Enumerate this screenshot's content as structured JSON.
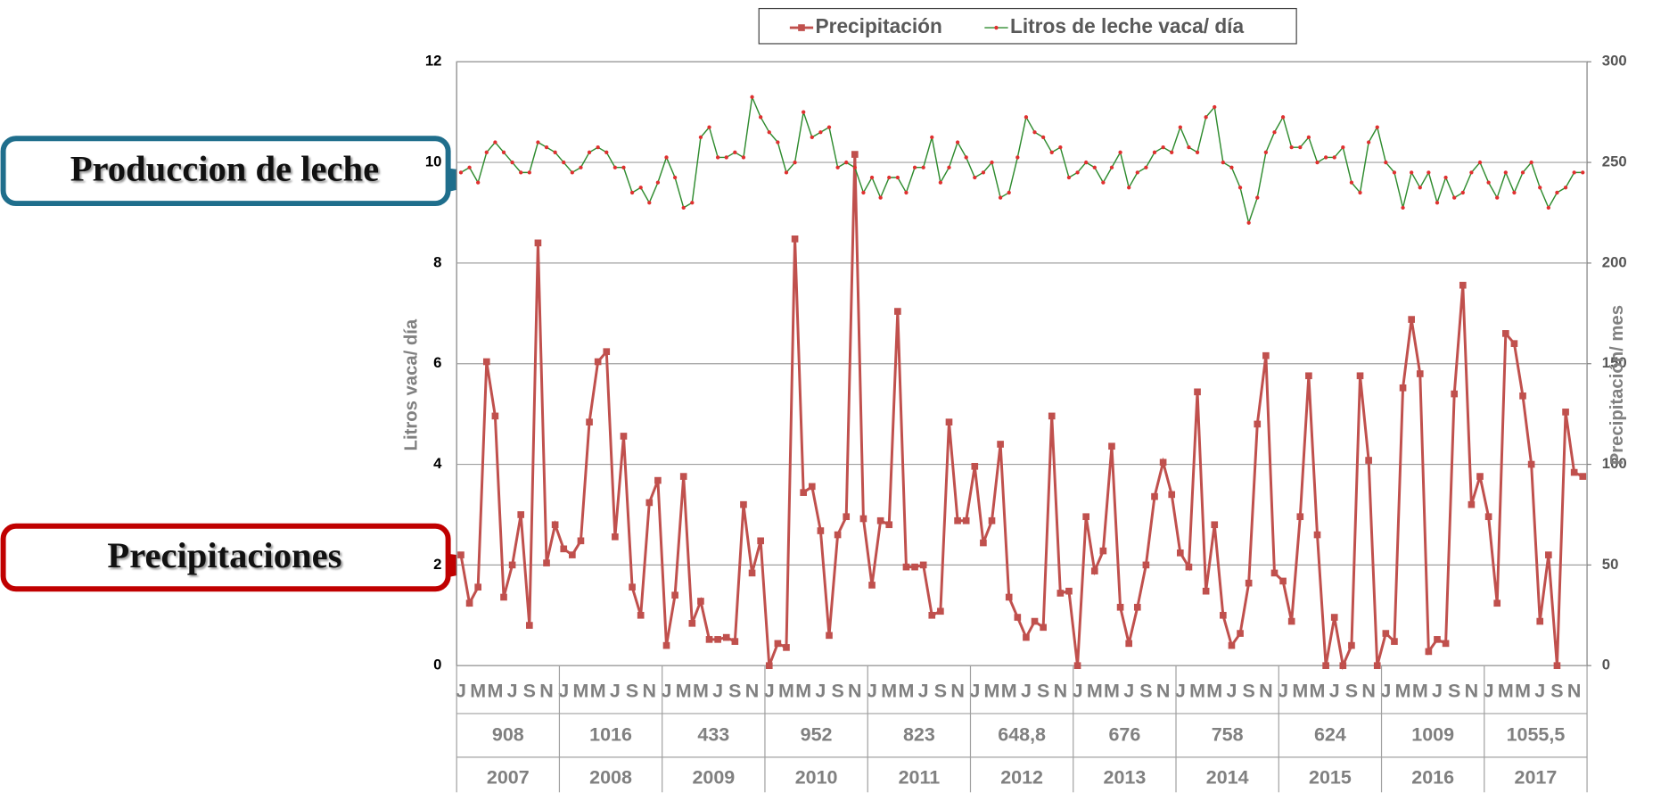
{
  "chart_data": {
    "type": "line",
    "categories": [
      "J",
      null,
      "M",
      null,
      "M",
      null,
      "J",
      null,
      "S",
      null,
      "N",
      null,
      "J",
      null,
      "M",
      null,
      "M",
      null,
      "J",
      null,
      "S",
      null,
      "N",
      null,
      "J",
      null,
      "M",
      null,
      "M",
      null,
      "J",
      null,
      "S",
      null,
      "N",
      null,
      "J",
      null,
      "M",
      null,
      "M",
      null,
      "J",
      null,
      "S",
      null,
      "N",
      null,
      "J",
      null,
      "M",
      null,
      "M",
      null,
      "J",
      null,
      "S",
      null,
      "N",
      null,
      "J",
      null,
      "M",
      null,
      "M",
      null,
      "J",
      null,
      "S",
      null,
      "N",
      null,
      "J",
      null,
      "M",
      null,
      "M",
      null,
      "J",
      null,
      "S",
      null,
      "N",
      null,
      "J",
      null,
      "M",
      null,
      "M",
      null,
      "J",
      null,
      "S",
      null,
      "N",
      null,
      "J",
      null,
      "M",
      null,
      "M",
      null,
      "J",
      null,
      "S",
      null,
      "N",
      null,
      "J",
      null,
      "M",
      null,
      "M",
      null,
      "J",
      null,
      "S",
      null,
      "N",
      null,
      "J",
      null,
      "M",
      null,
      "M",
      null,
      "J",
      null,
      "S",
      null,
      "N",
      null
    ],
    "x_groups": [
      {
        "total": "908",
        "year": "2007"
      },
      {
        "total": "1016",
        "year": "2008"
      },
      {
        "total": "433",
        "year": "2009"
      },
      {
        "total": "952",
        "year": "2010"
      },
      {
        "total": "823",
        "year": "2011"
      },
      {
        "total": "648,8",
        "year": "2012"
      },
      {
        "total": "676",
        "year": "2013"
      },
      {
        "total": "758",
        "year": "2014"
      },
      {
        "total": "624",
        "year": "2015"
      },
      {
        "total": "1009",
        "year": "2016"
      },
      {
        "total": "1055,5",
        "year": "2017"
      }
    ],
    "ylabel": "Litros vaca/ día",
    "y2label": "Precipitación/ mes",
    "ylim": [
      0,
      12
    ],
    "yticks": [
      0,
      2,
      4,
      6,
      8,
      10,
      12
    ],
    "y2lim": [
      0,
      300
    ],
    "y2ticks": [
      0,
      50,
      100,
      150,
      200,
      250,
      300
    ],
    "grid": true,
    "legend": "top",
    "series": [
      {
        "name": "Precipitación",
        "color": "#c0504d",
        "marker": "square",
        "axis": "y2",
        "values": [
          55,
          31,
          39,
          151,
          124,
          34,
          50,
          75,
          20,
          210,
          51,
          70,
          58,
          55,
          62,
          121,
          151,
          156,
          64,
          114,
          39,
          25,
          81,
          92,
          10,
          35,
          94,
          21,
          32,
          13,
          13,
          14,
          12,
          80,
          46,
          62,
          0,
          11,
          9,
          212,
          86,
          89,
          67,
          15,
          65,
          74,
          254,
          73,
          40,
          72,
          70,
          176,
          49,
          49,
          50,
          25,
          27,
          121,
          72,
          72,
          99,
          61,
          72,
          110,
          34,
          24,
          14,
          22,
          19,
          124,
          36,
          37,
          0,
          74,
          47,
          57,
          109,
          29,
          11,
          29,
          50,
          84,
          101,
          85,
          56,
          49,
          136,
          37,
          70,
          25,
          10,
          16,
          41,
          120,
          154,
          46,
          42,
          22,
          74,
          144,
          65,
          0,
          24,
          0,
          10,
          144,
          102,
          0,
          16,
          12,
          138,
          172,
          145,
          7,
          13,
          11,
          135,
          189,
          80,
          94,
          74,
          31,
          165,
          160,
          134,
          100,
          22,
          55,
          0,
          126,
          96,
          94
        ]
      },
      {
        "name": "Litros de leche vaca/ día",
        "color": "#2e8b2e",
        "marker": "dot",
        "marker_color": "#e03030",
        "values": [
          9.8,
          9.9,
          9.6,
          10.2,
          10.4,
          10.2,
          10.0,
          9.8,
          9.8,
          10.4,
          10.3,
          10.2,
          10.0,
          9.8,
          9.9,
          10.2,
          10.3,
          10.2,
          9.9,
          9.9,
          9.4,
          9.5,
          9.2,
          9.6,
          10.1,
          9.7,
          9.1,
          9.2,
          10.5,
          10.7,
          10.1,
          10.1,
          10.2,
          10.1,
          11.3,
          10.9,
          10.6,
          10.4,
          9.8,
          10.0,
          11.0,
          10.5,
          10.6,
          10.7,
          9.9,
          10.0,
          9.9,
          9.4,
          9.7,
          9.3,
          9.7,
          9.7,
          9.4,
          9.9,
          9.9,
          10.5,
          9.6,
          9.9,
          10.4,
          10.1,
          9.7,
          9.8,
          10.0,
          9.3,
          9.4,
          10.1,
          10.9,
          10.6,
          10.5,
          10.2,
          10.3,
          9.7,
          9.8,
          10.0,
          9.9,
          9.6,
          9.9,
          10.2,
          9.5,
          9.8,
          9.9,
          10.2,
          10.3,
          10.2,
          10.7,
          10.3,
          10.2,
          10.9,
          11.1,
          10.0,
          9.9,
          9.5,
          8.8,
          9.3,
          10.2,
          10.6,
          10.9,
          10.3,
          10.3,
          10.5,
          10.0,
          10.1,
          10.1,
          10.3,
          9.6,
          9.4,
          10.4,
          10.7,
          10.0,
          9.8,
          9.1,
          9.8,
          9.5,
          9.8,
          9.2,
          9.7,
          9.3,
          9.4,
          9.8,
          10.0,
          9.6,
          9.3,
          9.8,
          9.4,
          9.8,
          10.0,
          9.5,
          9.1,
          9.4,
          9.5,
          9.8,
          9.8
        ]
      }
    ],
    "annotations": [
      {
        "text": "Produccion de leche"
      },
      {
        "text": "Precipitaciones"
      }
    ]
  }
}
